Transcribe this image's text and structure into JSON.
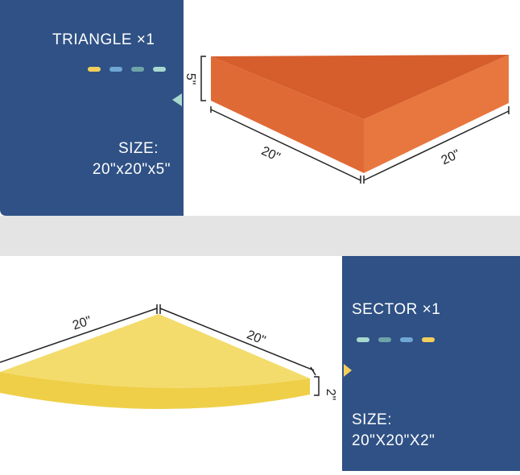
{
  "sections": [
    {
      "title": "TRIANGLE ×1",
      "size_label": "SIZE:",
      "size": "20\"x20\"x5\"",
      "dimensions": [
        "5\"",
        "20\"",
        "20\""
      ]
    },
    {
      "title": "SECTOR ×1",
      "size_label": "SIZE:",
      "size": "20\"X20\"X2\"",
      "dimensions": [
        "20\"",
        "20\"",
        "2\""
      ]
    }
  ]
}
